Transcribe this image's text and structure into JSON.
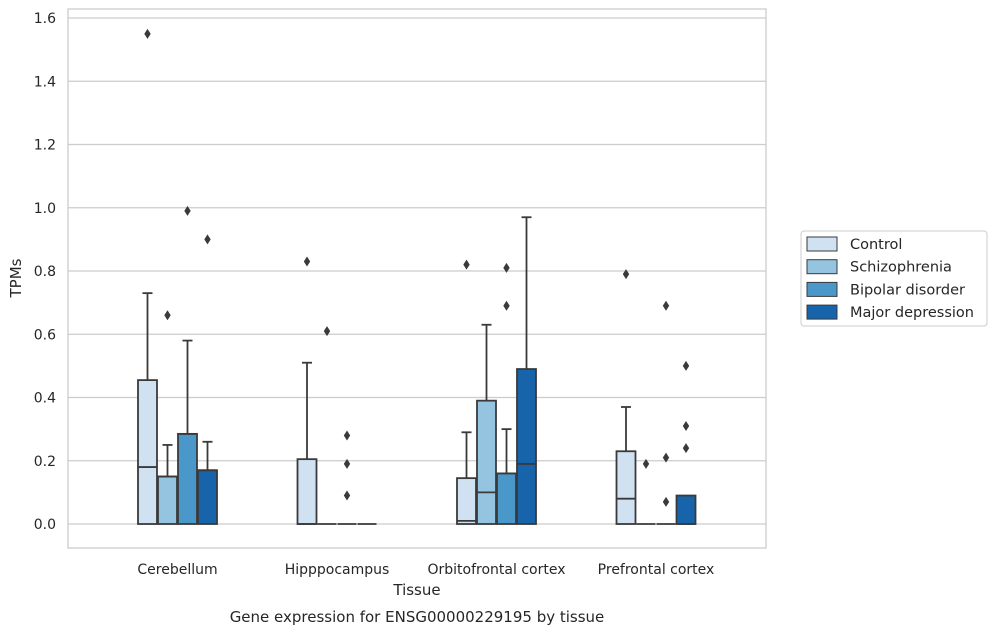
{
  "caption": "Gene expression for ENSG00000229195 by tissue",
  "chart_data": {
    "type": "box",
    "title": "",
    "xlabel": "Tissue",
    "ylabel": "TPMs",
    "ylim": [
      -0.075,
      1.63
    ],
    "yticks": [
      "0.0",
      "0.2",
      "0.4",
      "0.6",
      "0.8",
      "1.0",
      "1.2",
      "1.4",
      "1.6"
    ],
    "grid": "horizontal",
    "legend_position": "right",
    "categories": [
      "Cerebellum",
      "Hipppocampus",
      "Orbitofrontal cortex",
      "Prefrontal cortex"
    ],
    "series": [
      {
        "name": "Control",
        "color": "#d0e1f2",
        "boxes": [
          {
            "whislo": 0.0,
            "q1": 0.0,
            "med": 0.18,
            "q3": 0.455,
            "whishi": 0.73,
            "fliers": [
              1.55
            ]
          },
          {
            "whislo": 0.0,
            "q1": 0.0,
            "med": 0.0,
            "q3": 0.205,
            "whishi": 0.51,
            "fliers": [
              0.83
            ]
          },
          {
            "whislo": 0.0,
            "q1": 0.0,
            "med": 0.01,
            "q3": 0.145,
            "whishi": 0.29,
            "fliers": [
              0.82
            ]
          },
          {
            "whislo": 0.0,
            "q1": 0.0,
            "med": 0.08,
            "q3": 0.23,
            "whishi": 0.37,
            "fliers": [
              0.79
            ]
          }
        ]
      },
      {
        "name": "Schizophrenia",
        "color": "#94c4df",
        "boxes": [
          {
            "whislo": 0.0,
            "q1": 0.0,
            "med": 0.15,
            "q3": 0.15,
            "whishi": 0.25,
            "fliers": [
              0.66
            ]
          },
          {
            "whislo": 0.0,
            "q1": 0.0,
            "med": 0.0,
            "q3": 0.0,
            "whishi": 0.0,
            "fliers": [
              0.61
            ]
          },
          {
            "whislo": 0.0,
            "q1": 0.0,
            "med": 0.1,
            "q3": 0.39,
            "whishi": 0.63,
            "fliers": []
          },
          {
            "whislo": 0.0,
            "q1": 0.0,
            "med": 0.0,
            "q3": 0.0,
            "whishi": 0.0,
            "fliers": [
              0.19
            ]
          }
        ]
      },
      {
        "name": "Bipolar disorder",
        "color": "#4a98c9",
        "boxes": [
          {
            "whislo": 0.0,
            "q1": 0.0,
            "med": 0.285,
            "q3": 0.285,
            "whishi": 0.58,
            "fliers": [
              0.99
            ]
          },
          {
            "whislo": 0.0,
            "q1": 0.0,
            "med": 0.0,
            "q3": 0.0,
            "whishi": 0.0,
            "fliers": [
              0.28,
              0.19,
              0.09
            ]
          },
          {
            "whislo": 0.0,
            "q1": 0.0,
            "med": 0.16,
            "q3": 0.16,
            "whishi": 0.3,
            "fliers": [
              0.81,
              0.69
            ]
          },
          {
            "whislo": 0.0,
            "q1": 0.0,
            "med": 0.0,
            "q3": 0.0,
            "whishi": 0.0,
            "fliers": [
              0.69,
              0.21,
              0.07
            ]
          }
        ]
      },
      {
        "name": "Major depression",
        "color": "#1764ab",
        "boxes": [
          {
            "whislo": 0.0,
            "q1": 0.0,
            "med": 0.17,
            "q3": 0.17,
            "whishi": 0.26,
            "fliers": [
              0.9
            ]
          },
          {
            "whislo": 0.0,
            "q1": 0.0,
            "med": 0.0,
            "q3": 0.0,
            "whishi": 0.0,
            "fliers": []
          },
          {
            "whislo": 0.0,
            "q1": 0.0,
            "med": 0.19,
            "q3": 0.49,
            "whishi": 0.97,
            "fliers": []
          },
          {
            "whislo": 0.0,
            "q1": 0.0,
            "med": 0.0,
            "q3": 0.09,
            "whishi": 0.09,
            "fliers": [
              0.5,
              0.31,
              0.24
            ]
          }
        ]
      }
    ]
  }
}
